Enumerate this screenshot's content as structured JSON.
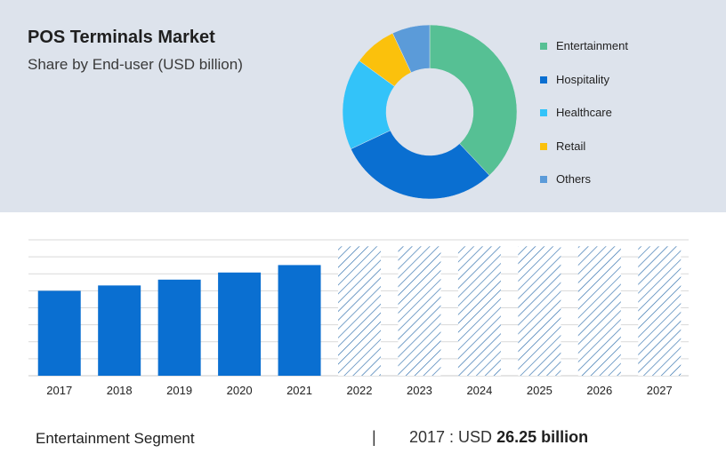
{
  "header": {
    "title": "POS Terminals Market",
    "subtitle": "Share by End-user (USD billion)"
  },
  "colors": {
    "panel_bg": "#dde3ec",
    "bar_actual": "#0a6fd1",
    "bar_forecast_hatch": "#2f6fad",
    "grid": "#d9d9d9"
  },
  "chart_data": [
    {
      "type": "pie",
      "variant": "donut",
      "categories": [
        "Entertainment",
        "Hospitality",
        "Healthcare",
        "Retail",
        "Others"
      ],
      "values": [
        38,
        30,
        17,
        8,
        7
      ],
      "colors": [
        "#56c094",
        "#0a6fd1",
        "#33c3f9",
        "#fbc10c",
        "#5b9bd9"
      ],
      "legend_position": "right"
    },
    {
      "type": "bar",
      "categories": [
        "2017",
        "2018",
        "2019",
        "2020",
        "2021",
        "2022",
        "2023",
        "2024",
        "2025",
        "2026",
        "2027"
      ],
      "values": [
        26.25,
        27.9,
        29.7,
        31.9,
        34.2,
        40.0,
        40.0,
        40.0,
        40.0,
        40.0,
        40.0
      ],
      "forecast": [
        false,
        false,
        false,
        false,
        false,
        true,
        true,
        true,
        true,
        true,
        true
      ],
      "ylim": [
        0,
        42
      ],
      "grid": true,
      "xlabel": "",
      "ylabel": ""
    }
  ],
  "footer": {
    "segment_label": "Entertainment Segment",
    "separator": "|",
    "stat_prefix": "2017 : USD ",
    "stat_value": "26.25 billion"
  }
}
